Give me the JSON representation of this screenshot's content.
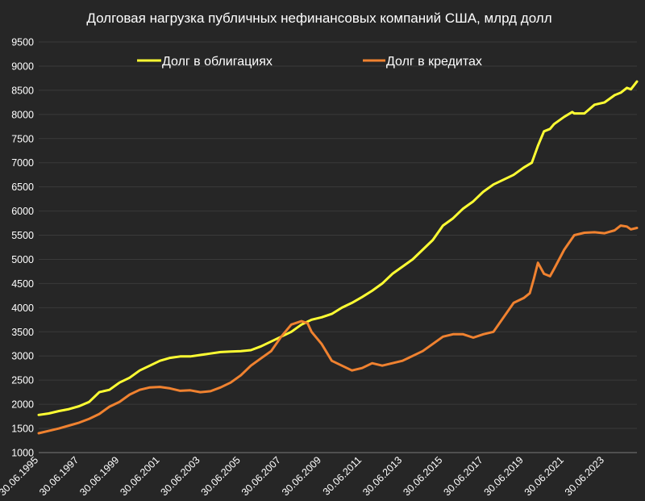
{
  "chart_data": {
    "type": "line",
    "title": "Долговая нагрузка публичных нефинансовых компаний США, млрд долл",
    "xlabel": "",
    "ylabel": "",
    "ylim": [
      1000,
      9500
    ],
    "yticks": [
      1000,
      1500,
      2000,
      2500,
      3000,
      3500,
      4000,
      4500,
      5000,
      5500,
      6000,
      6500,
      7000,
      7500,
      8000,
      8500,
      9000,
      9500
    ],
    "xlim": [
      1995.5,
      2025.1
    ],
    "x_tick_labels": [
      "30.06.1995",
      "30.06.1997",
      "30.06.1999",
      "30.06.2001",
      "30.06.2003",
      "30.06.2005",
      "30.06.2007",
      "30.06.2009",
      "30.06.2011",
      "30.06.2013",
      "30.06.2015",
      "30.06.2017",
      "30.06.2019",
      "30.06.2021",
      "30.06.2023"
    ],
    "grid": true,
    "legend_position": "top",
    "series": [
      {
        "name": "Долг в облигациях",
        "color": "#ffff33",
        "x": [
          1995.5,
          1996.0,
          1996.5,
          1997.0,
          1997.5,
          1998.0,
          1998.5,
          1999.0,
          1999.5,
          2000.0,
          2000.5,
          2001.0,
          2001.5,
          2002.0,
          2002.5,
          2003.0,
          2003.5,
          2004.0,
          2004.5,
          2005.0,
          2005.5,
          2006.0,
          2006.5,
          2007.0,
          2007.5,
          2008.0,
          2008.5,
          2009.0,
          2009.5,
          2010.0,
          2010.5,
          2011.0,
          2011.5,
          2012.0,
          2012.5,
          2013.0,
          2013.5,
          2014.0,
          2014.5,
          2015.0,
          2015.5,
          2016.0,
          2016.5,
          2017.0,
          2017.5,
          2018.0,
          2018.5,
          2019.0,
          2019.5,
          2019.9,
          2020.2,
          2020.5,
          2020.8,
          2021.0,
          2021.5,
          2021.9,
          2022.0,
          2022.5,
          2023.0,
          2023.5,
          2024.0,
          2024.3,
          2024.6,
          2024.8,
          2025.1
        ],
        "values": [
          1780,
          1810,
          1860,
          1900,
          1960,
          2050,
          2250,
          2300,
          2450,
          2550,
          2700,
          2800,
          2900,
          2960,
          2990,
          2990,
          3020,
          3050,
          3080,
          3090,
          3100,
          3120,
          3200,
          3300,
          3400,
          3500,
          3650,
          3750,
          3800,
          3870,
          4000,
          4100,
          4220,
          4350,
          4500,
          4700,
          4850,
          5000,
          5200,
          5400,
          5700,
          5850,
          6050,
          6200,
          6400,
          6550,
          6650,
          6750,
          6900,
          7000,
          7350,
          7650,
          7700,
          7800,
          7950,
          8050,
          8020,
          8020,
          8200,
          8250,
          8400,
          8450,
          8550,
          8520,
          8680
        ]
      },
      {
        "name": "Долг в кредитах",
        "color": "#f08230",
        "x": [
          1995.5,
          1996.0,
          1996.5,
          1997.0,
          1997.5,
          1998.0,
          1998.5,
          1999.0,
          1999.5,
          2000.0,
          2000.5,
          2001.0,
          2001.5,
          2002.0,
          2002.5,
          2003.0,
          2003.5,
          2004.0,
          2004.5,
          2005.0,
          2005.5,
          2006.0,
          2006.5,
          2007.0,
          2007.5,
          2008.0,
          2008.5,
          2008.8,
          2009.0,
          2009.5,
          2010.0,
          2010.5,
          2011.0,
          2011.5,
          2012.0,
          2012.5,
          2013.0,
          2013.5,
          2014.0,
          2014.5,
          2015.0,
          2015.5,
          2016.0,
          2016.5,
          2017.0,
          2017.5,
          2018.0,
          2018.5,
          2019.0,
          2019.5,
          2019.8,
          2020.0,
          2020.2,
          2020.5,
          2020.8,
          2021.0,
          2021.5,
          2022.0,
          2022.5,
          2023.0,
          2023.5,
          2024.0,
          2024.3,
          2024.6,
          2024.8,
          2025.1
        ],
        "values": [
          1400,
          1450,
          1500,
          1560,
          1620,
          1700,
          1800,
          1950,
          2050,
          2200,
          2300,
          2350,
          2360,
          2330,
          2280,
          2290,
          2250,
          2270,
          2350,
          2450,
          2600,
          2800,
          2950,
          3100,
          3400,
          3650,
          3720,
          3680,
          3500,
          3250,
          2900,
          2800,
          2700,
          2750,
          2850,
          2800,
          2850,
          2900,
          3000,
          3100,
          3250,
          3400,
          3450,
          3450,
          3380,
          3450,
          3500,
          3800,
          4100,
          4200,
          4300,
          4600,
          4930,
          4700,
          4650,
          4800,
          5200,
          5500,
          5550,
          5560,
          5540,
          5600,
          5700,
          5680,
          5620,
          5650
        ]
      }
    ]
  }
}
